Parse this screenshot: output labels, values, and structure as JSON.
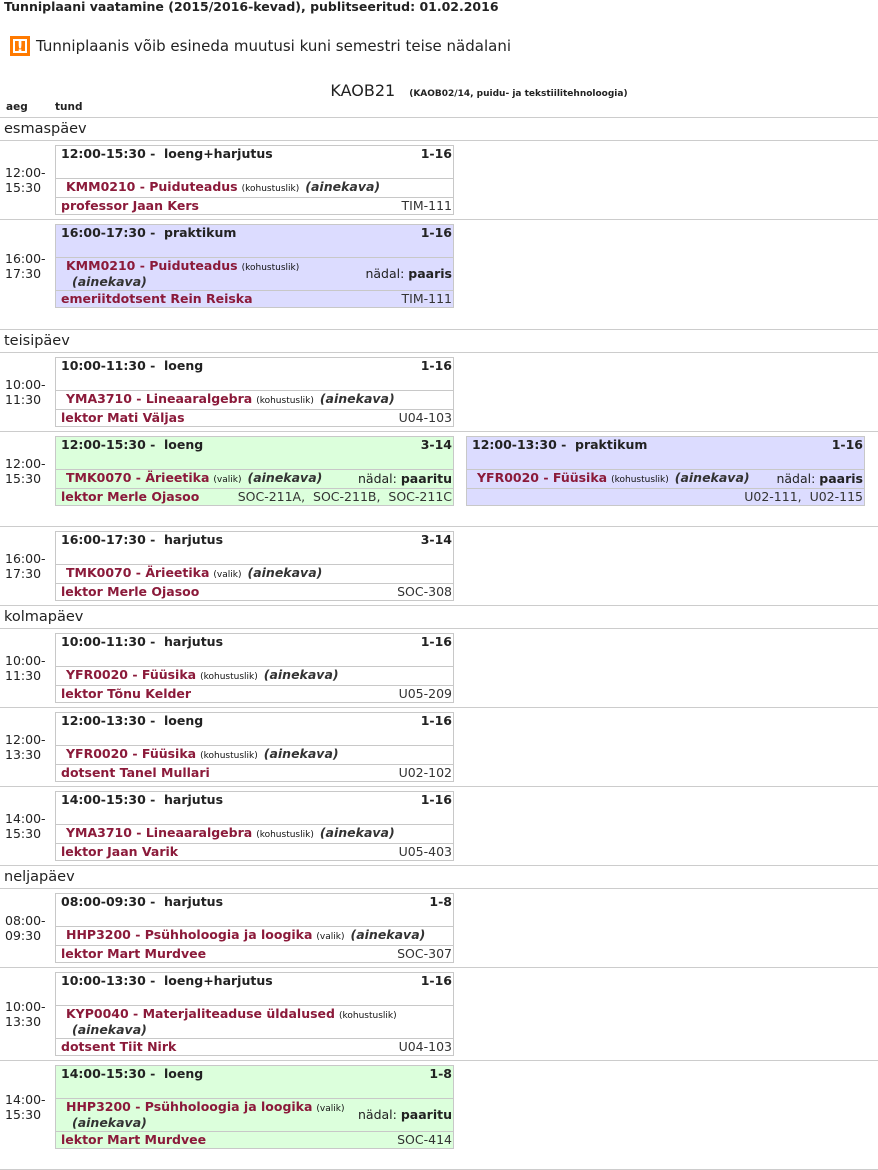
{
  "page_title": "Tunniplaani vaatamine (2015/2016-kevad), publitseeritud: 01.02.2016",
  "notice": {
    "icon": "warning-icon",
    "text": "Tunniplaanis võib esineda muutusi kuni semestri teise nädalani",
    "color": "#ff7a00"
  },
  "group": {
    "code": "KAOB21",
    "description": "(KAOB02/14, puidu- ja tekstiilitehnoloogia)"
  },
  "columns": {
    "time": "aeg",
    "lesson": "tund"
  },
  "colors": {
    "green": "#dcffdc",
    "purple": "#dcdcff",
    "link": "#8b1a3a"
  },
  "days": [
    {
      "name": "esmaspäev",
      "slots": [
        {
          "time": [
            "12:00-",
            "15:30"
          ],
          "entries": [
            {
              "time_range": "12:00-15:30 -",
              "type": "loeng+harjutus",
              "weeks": "1-16",
              "course": "KMM0210 - Puiduteadus",
              "status": "(kohustuslik)",
              "ainekava": "(ainekava)",
              "teacher": "professor Jaan Kers",
              "rooms": "TIM-111",
              "color": "white"
            }
          ]
        },
        {
          "time": [
            "16:00-",
            "17:30"
          ],
          "entries": [
            {
              "time_range": "16:00-17:30 -",
              "type": "praktikum",
              "weeks": "1-16",
              "course": "KMM0210 - Puiduteadus",
              "status": "(kohustuslik)",
              "ainekava": "(ainekava)",
              "week_label": "nädal:",
              "week_value": "paaris",
              "teacher": "emeriitdotsent Rein Reiska",
              "rooms": "TIM-111",
              "color": "purple"
            }
          ]
        }
      ]
    },
    {
      "name": "teisipäev",
      "slots": [
        {
          "time": [
            "10:00-",
            "11:30"
          ],
          "entries": [
            {
              "time_range": "10:00-11:30 -",
              "type": "loeng",
              "weeks": "1-16",
              "course": "YMA3710 - Lineaaralgebra",
              "status": "(kohustuslik)",
              "ainekava": "(ainekava)",
              "teacher": "lektor Mati Väljas",
              "rooms": "U04-103",
              "color": "white"
            }
          ]
        },
        {
          "time": [
            "12:00-",
            "15:30"
          ],
          "entries": [
            {
              "time_range": "12:00-15:30 -",
              "type": "loeng",
              "weeks": "3-14",
              "course": "TMK0070 - Ärieetika",
              "status": "(valik)",
              "ainekava": "(ainekava)",
              "week_label": "nädal:",
              "week_value": "paaritu",
              "teacher": "lektor Merle Ojasoo",
              "rooms": "SOC-211A,  SOC-211B,  SOC-211C",
              "color": "green"
            },
            {
              "time_range": "12:00-13:30 -",
              "type": "praktikum",
              "weeks": "1-16",
              "course": "YFR0020 - Füüsika",
              "status": "(kohustuslik)",
              "ainekava": "(ainekava)",
              "week_label": "nädal:",
              "week_value": "paaris",
              "teacher": "",
              "rooms": "U02-111,  U02-115",
              "color": "purple"
            }
          ]
        },
        {
          "time": [
            "16:00-",
            "17:30"
          ],
          "entries": [
            {
              "time_range": "16:00-17:30 -",
              "type": "harjutus",
              "weeks": "3-14",
              "course": "TMK0070 - Ärieetika",
              "status": "(valik)",
              "ainekava": "(ainekava)",
              "teacher": "lektor Merle Ojasoo",
              "rooms": "SOC-308",
              "color": "white"
            }
          ]
        }
      ]
    },
    {
      "name": "kolmapäev",
      "slots": [
        {
          "time": [
            "10:00-",
            "11:30"
          ],
          "entries": [
            {
              "time_range": "10:00-11:30 -",
              "type": "harjutus",
              "weeks": "1-16",
              "course": "YFR0020 - Füüsika",
              "status": "(kohustuslik)",
              "ainekava": "(ainekava)",
              "teacher": "lektor Tõnu Kelder",
              "rooms": "U05-209",
              "color": "white"
            }
          ]
        },
        {
          "time": [
            "12:00-",
            "13:30"
          ],
          "entries": [
            {
              "time_range": "12:00-13:30 -",
              "type": "loeng",
              "weeks": "1-16",
              "course": "YFR0020 - Füüsika",
              "status": "(kohustuslik)",
              "ainekava": "(ainekava)",
              "teacher": "dotsent Tanel Mullari",
              "rooms": "U02-102",
              "color": "white"
            }
          ]
        },
        {
          "time": [
            "14:00-",
            "15:30"
          ],
          "entries": [
            {
              "time_range": "14:00-15:30 -",
              "type": "harjutus",
              "weeks": "1-16",
              "course": "YMA3710 - Lineaaralgebra",
              "status": "(kohustuslik)",
              "ainekava": "(ainekava)",
              "teacher": "lektor Jaan Varik",
              "rooms": "U05-403",
              "color": "white"
            }
          ]
        }
      ]
    },
    {
      "name": "neljapäev",
      "slots": [
        {
          "time": [
            "08:00-",
            "09:30"
          ],
          "entries": [
            {
              "time_range": "08:00-09:30 -",
              "type": "harjutus",
              "weeks": "1-8",
              "course": "HHP3200 - Psühholoogia ja loogika",
              "status": "(valik)",
              "ainekava": "(ainekava)",
              "teacher": "lektor Mart Murdvee",
              "rooms": "SOC-307",
              "color": "white"
            }
          ]
        },
        {
          "time": [
            "10:00-",
            "13:30"
          ],
          "entries": [
            {
              "time_range": "10:00-13:30 -",
              "type": "loeng+harjutus",
              "weeks": "1-16",
              "course": "KYP0040 - Materjaliteaduse üldalused",
              "status": "(kohustuslik)",
              "ainekava": "(ainekava)",
              "teacher": "dotsent Tiit Nirk",
              "rooms": "U04-103",
              "color": "white"
            }
          ]
        },
        {
          "time": [
            "14:00-",
            "15:30"
          ],
          "entries": [
            {
              "time_range": "14:00-15:30 -",
              "type": "loeng",
              "weeks": "1-8",
              "course": "HHP3200 - Psühholoogia ja loogika",
              "status": "(valik)",
              "ainekava": "(ainekava)",
              "week_label": "nädal:",
              "week_value": "paaritu",
              "teacher": "lektor Mart Murdvee",
              "rooms": "SOC-414",
              "color": "green"
            }
          ]
        }
      ]
    }
  ]
}
